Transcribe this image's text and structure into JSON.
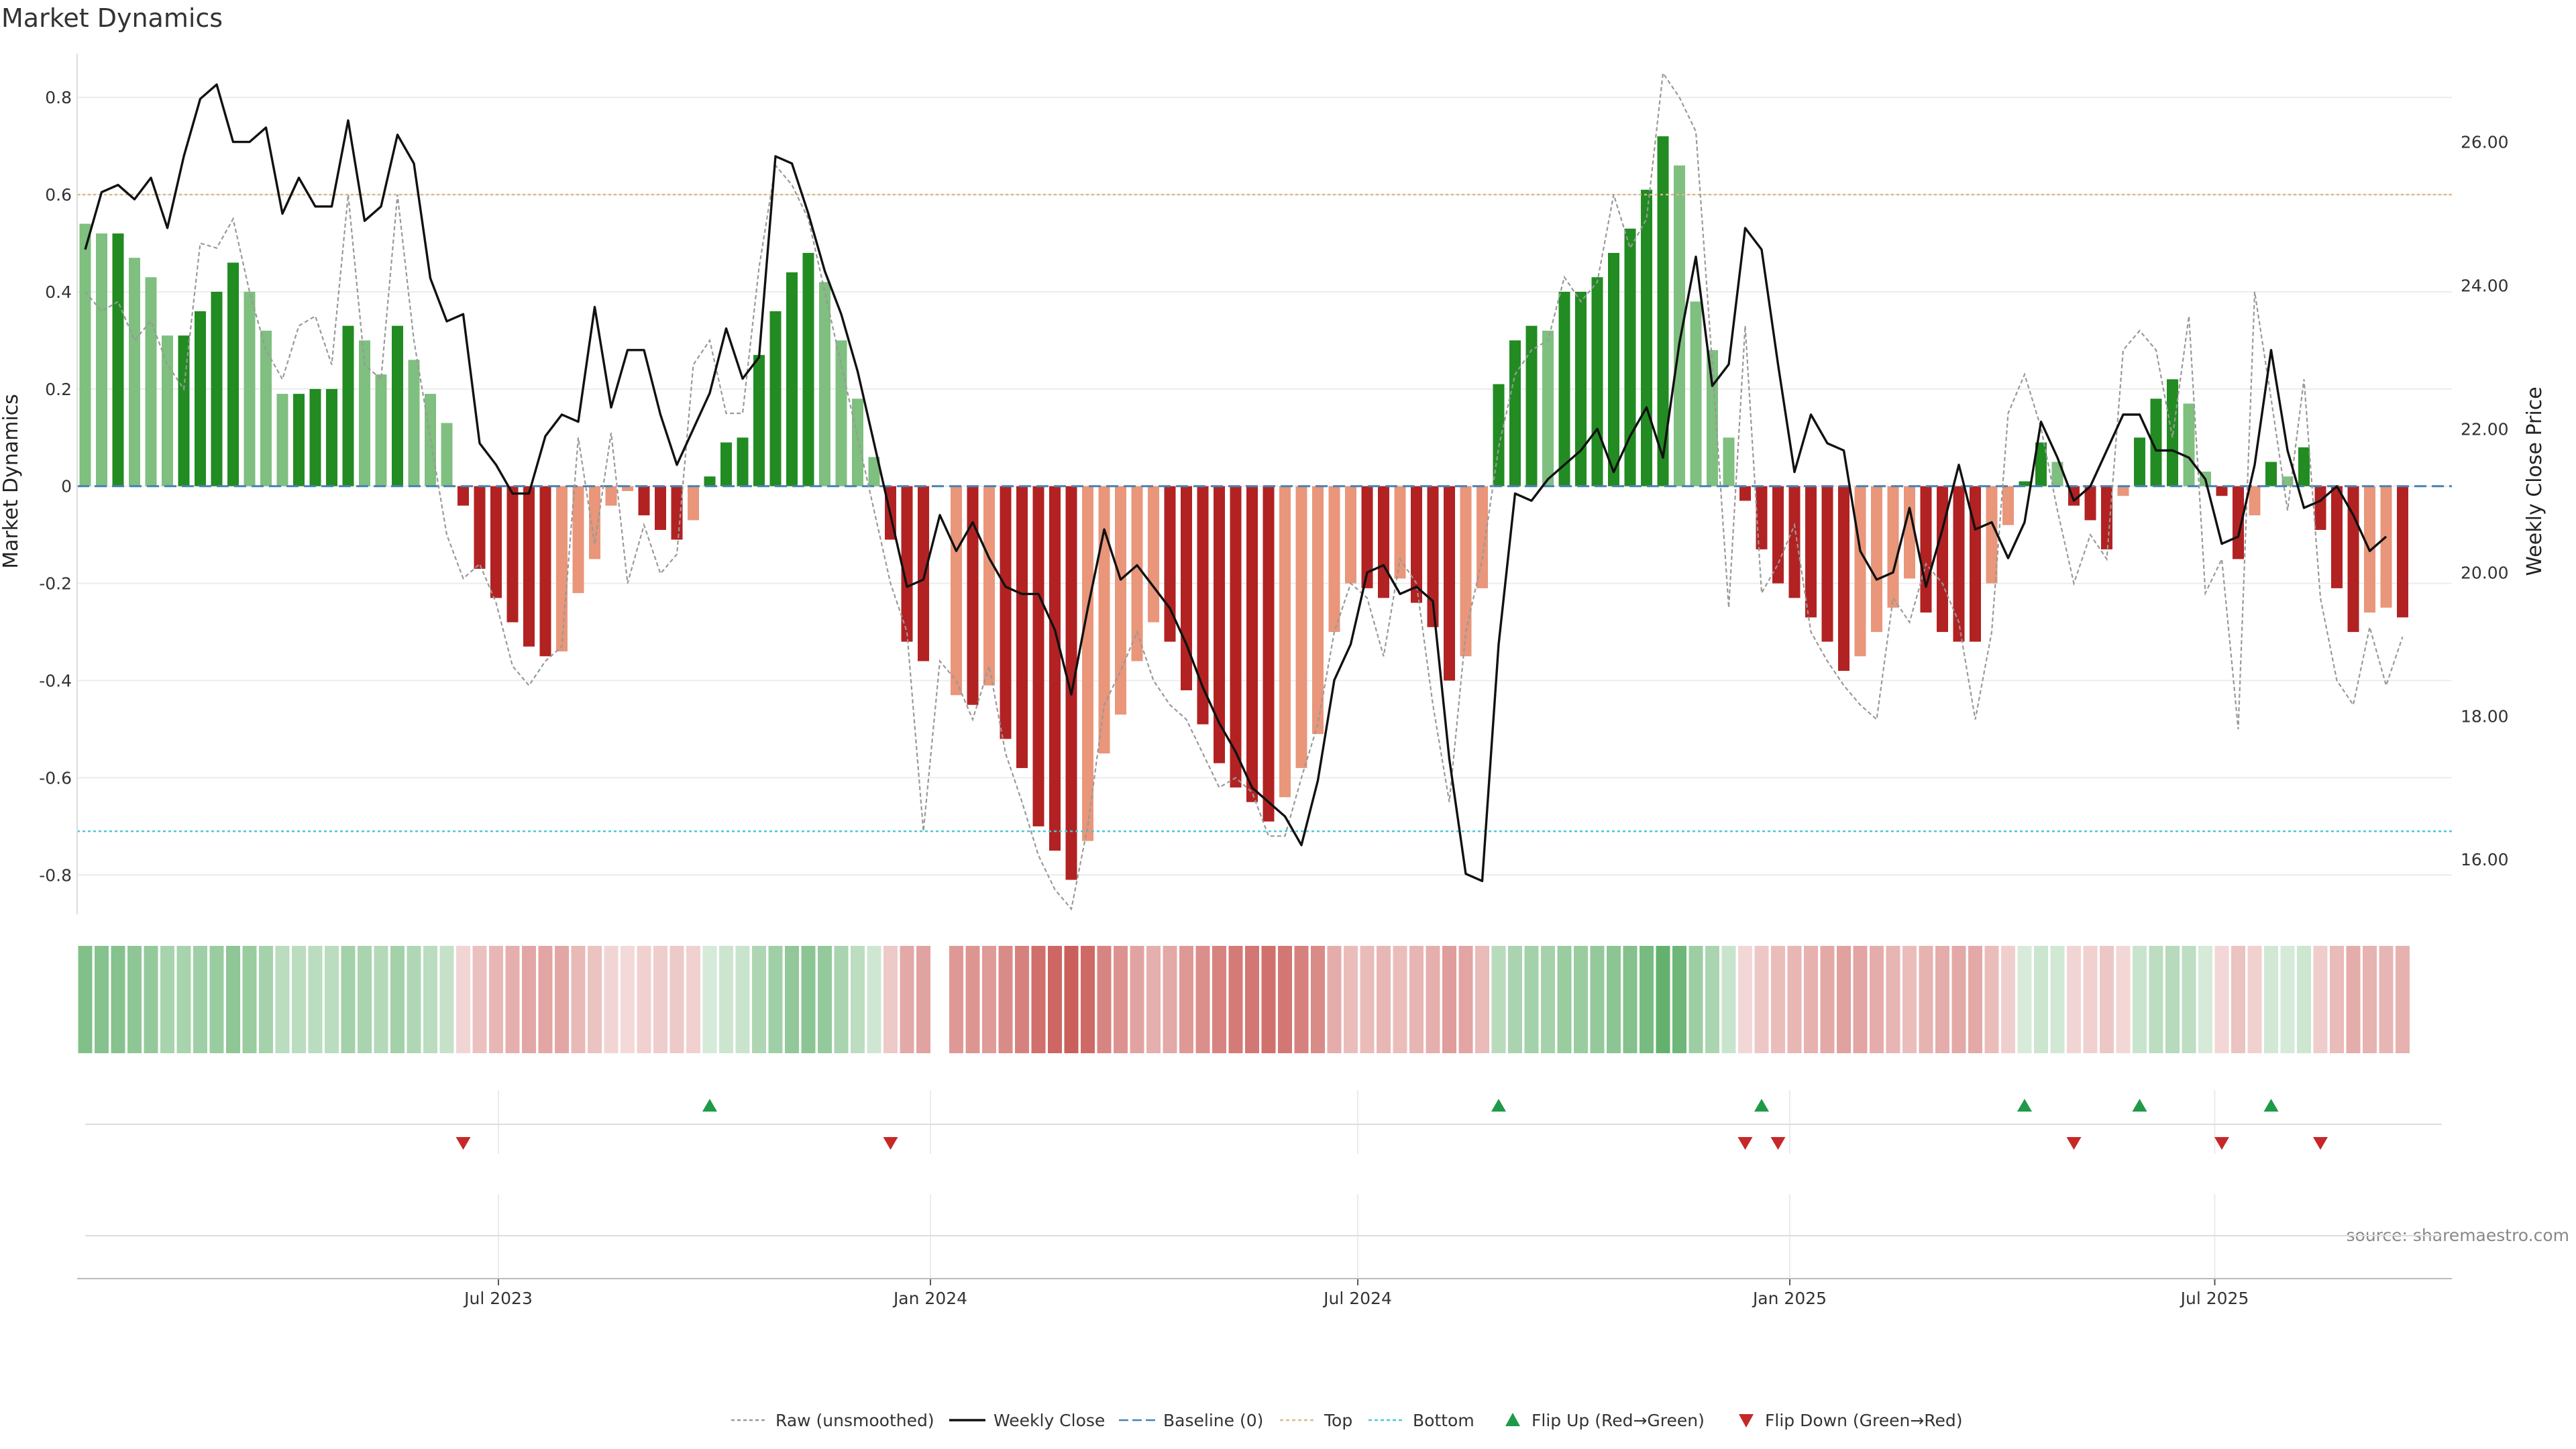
{
  "title": "Market Dynamics",
  "source": "source: sharemaestro.com",
  "colors": {
    "strong_green": "#228B22",
    "light_green": "#7FBF7F",
    "strong_red": "#B22222",
    "light_red": "#E9967A",
    "raw": "#999999",
    "close": "#111111",
    "baseline": "#4682B4",
    "top": "#DEB887",
    "bottom": "#48C9D9",
    "flip_up": "#1F9A48",
    "flip_down": "#C62828"
  },
  "chart_data": {
    "type": "bar",
    "x_start": "2023-01-06",
    "interval_days": 7,
    "x_ticks": [
      {
        "date": "2023-07-01",
        "label": "Jul 2023"
      },
      {
        "date": "2024-01-01",
        "label": "Jan 2024"
      },
      {
        "date": "2024-07-01",
        "label": "Jul 2024"
      },
      {
        "date": "2025-01-01",
        "label": "Jan 2025"
      },
      {
        "date": "2025-07-01",
        "label": "Jul 2025"
      }
    ],
    "ylabel": "Market Dynamics",
    "ylim": [
      -0.87,
      0.89
    ],
    "yticks": [
      -0.8,
      -0.6,
      -0.4,
      -0.2,
      0,
      0.2,
      0.4,
      0.6,
      0.8
    ],
    "y2label": "Weekly Close Price",
    "y2lim": [
      15.31,
      27.23
    ],
    "y2ticks": [
      "16.00",
      "18.00",
      "20.00",
      "22.00",
      "24.00",
      "26.00"
    ],
    "top_level": 0.6,
    "bottom_level": -0.71,
    "series": [
      {
        "name": "Market Dynamics (bars)",
        "values": [
          0.54,
          0.52,
          0.52,
          0.47,
          0.43,
          0.31,
          0.31,
          0.36,
          0.4,
          0.46,
          0.4,
          0.32,
          0.19,
          0.19,
          0.2,
          0.2,
          0.33,
          0.3,
          0.23,
          0.33,
          0.26,
          0.19,
          0.13,
          -0.04,
          -0.17,
          -0.23,
          -0.28,
          -0.33,
          -0.35,
          -0.34,
          -0.22,
          -0.15,
          -0.04,
          -0.01,
          -0.06,
          -0.09,
          -0.11,
          -0.07,
          0.02,
          0.09,
          0.1,
          0.27,
          0.36,
          0.44,
          0.48,
          0.42,
          0.3,
          0.18,
          0.06,
          -0.11,
          -0.32,
          -0.36,
          null,
          -0.43,
          -0.45,
          -0.41,
          -0.52,
          -0.58,
          -0.7,
          -0.75,
          -0.81,
          -0.73,
          -0.55,
          -0.47,
          -0.36,
          -0.28,
          -0.32,
          -0.42,
          -0.49,
          -0.57,
          -0.62,
          -0.65,
          -0.69,
          -0.64,
          -0.58,
          -0.51,
          -0.3,
          -0.2,
          -0.21,
          -0.23,
          -0.19,
          -0.24,
          -0.29,
          -0.4,
          -0.35,
          -0.21,
          0.21,
          0.3,
          0.33,
          0.32,
          0.4,
          0.4,
          0.43,
          0.48,
          0.53,
          0.61,
          0.72,
          0.66,
          0.38,
          0.28,
          0.1,
          -0.03,
          -0.13,
          -0.2,
          -0.23,
          -0.27,
          -0.32,
          -0.38,
          -0.35,
          -0.3,
          -0.25,
          -0.19,
          -0.26,
          -0.3,
          -0.32,
          -0.32,
          -0.2,
          -0.08,
          0.01,
          0.09,
          0.05,
          -0.04,
          -0.07,
          -0.13,
          -0.02,
          0.1,
          0.18,
          0.22,
          0.17,
          0.03,
          -0.02,
          -0.15,
          -0.06,
          0.05,
          0.02,
          0.08,
          -0.09,
          -0.21,
          -0.3,
          -0.26,
          -0.25,
          -0.27
        ]
      },
      {
        "name": "Raw (unsmoothed)",
        "values": [
          0.4,
          0.36,
          0.38,
          0.3,
          0.34,
          0.25,
          0.2,
          0.5,
          0.49,
          0.55,
          0.4,
          0.28,
          0.22,
          0.33,
          0.35,
          0.25,
          0.6,
          0.25,
          0.22,
          0.6,
          0.3,
          0.1,
          -0.1,
          -0.19,
          -0.16,
          -0.24,
          -0.37,
          -0.41,
          -0.36,
          -0.33,
          0.1,
          -0.12,
          0.11,
          -0.2,
          -0.08,
          -0.18,
          -0.14,
          0.25,
          0.3,
          0.15,
          0.15,
          0.45,
          0.66,
          0.62,
          0.55,
          0.4,
          0.25,
          0.1,
          -0.05,
          -0.2,
          -0.3,
          -0.71,
          -0.36,
          -0.4,
          -0.48,
          -0.37,
          -0.55,
          -0.65,
          -0.76,
          -0.83,
          -0.87,
          -0.7,
          -0.45,
          -0.38,
          -0.3,
          -0.4,
          -0.45,
          -0.48,
          -0.55,
          -0.62,
          -0.6,
          -0.63,
          -0.72,
          -0.72,
          -0.6,
          -0.49,
          -0.3,
          -0.2,
          -0.23,
          -0.35,
          -0.15,
          -0.2,
          -0.45,
          -0.65,
          -0.3,
          -0.15,
          0.08,
          0.23,
          0.28,
          0.3,
          0.43,
          0.38,
          0.42,
          0.6,
          0.49,
          0.55,
          0.85,
          0.8,
          0.73,
          0.25,
          -0.25,
          0.33,
          -0.22,
          -0.16,
          -0.08,
          -0.3,
          -0.36,
          -0.41,
          -0.45,
          -0.48,
          -0.23,
          -0.28,
          -0.16,
          -0.2,
          -0.28,
          -0.48,
          -0.3,
          0.15,
          0.23,
          0.12,
          -0.05,
          -0.2,
          -0.1,
          -0.15,
          0.28,
          0.32,
          0.28,
          0.1,
          0.35,
          -0.22,
          -0.15,
          -0.5,
          0.4,
          0.18,
          -0.05,
          0.22,
          -0.23,
          -0.4,
          -0.45,
          -0.29,
          -0.41,
          -0.31
        ]
      },
      {
        "name": "Weekly Close",
        "axis": "y2",
        "values": [
          24.5,
          25.3,
          25.4,
          25.2,
          25.5,
          24.8,
          25.8,
          26.6,
          26.8,
          26.0,
          26.0,
          26.2,
          25.0,
          25.5,
          25.1,
          25.1,
          26.3,
          24.9,
          25.1,
          26.1,
          25.7,
          24.1,
          23.5,
          23.6,
          21.8,
          21.5,
          21.1,
          21.1,
          21.9,
          22.2,
          22.1,
          23.7,
          22.3,
          23.1,
          23.1,
          22.2,
          21.5,
          22.0,
          22.5,
          23.4,
          22.7,
          23.0,
          25.8,
          25.7,
          25.0,
          24.2,
          23.6,
          22.8,
          21.8,
          20.8,
          19.8,
          19.9,
          20.8,
          20.3,
          20.7,
          20.2,
          19.8,
          19.7,
          19.7,
          19.2,
          18.3,
          19.5,
          20.6,
          19.9,
          20.1,
          19.8,
          19.5,
          19.0,
          18.4,
          17.9,
          17.5,
          17.0,
          16.8,
          16.6,
          16.2,
          17.1,
          18.5,
          19.0,
          20.0,
          20.1,
          19.7,
          19.8,
          19.6,
          17.4,
          15.8,
          15.7,
          19.0,
          21.1,
          21.0,
          21.3,
          21.5,
          21.7,
          22.0,
          21.4,
          21.9,
          22.3,
          21.6,
          23.2,
          24.4,
          22.6,
          22.9,
          24.8,
          24.5,
          22.9,
          21.4,
          22.2,
          21.8,
          21.7,
          20.3,
          19.9,
          20.0,
          20.9,
          19.8,
          20.6,
          21.5,
          20.6,
          20.7,
          20.2,
          20.7,
          22.1,
          21.6,
          21.0,
          21.2,
          21.7,
          22.2,
          22.2,
          21.7,
          21.7,
          21.6,
          21.3,
          20.4,
          20.5,
          21.5,
          23.1,
          21.7,
          20.9,
          21.0,
          21.2,
          20.8,
          20.3,
          20.5
        ]
      }
    ],
    "sentiment_strip": [
      0.54,
      0.52,
      0.52,
      0.47,
      0.43,
      0.31,
      0.31,
      0.36,
      0.4,
      0.46,
      0.4,
      0.32,
      0.19,
      0.19,
      0.2,
      0.2,
      0.33,
      0.3,
      0.23,
      0.33,
      0.26,
      0.19,
      0.13,
      -0.04,
      -0.17,
      -0.23,
      -0.28,
      -0.33,
      -0.35,
      -0.34,
      -0.22,
      -0.15,
      -0.04,
      -0.01,
      -0.06,
      -0.09,
      -0.11,
      -0.07,
      0.02,
      0.09,
      0.1,
      0.27,
      0.36,
      0.44,
      0.48,
      0.42,
      0.3,
      0.18,
      0.06,
      -0.11,
      -0.32,
      -0.36,
      null,
      -0.43,
      -0.45,
      -0.41,
      -0.52,
      -0.58,
      -0.7,
      -0.75,
      -0.81,
      -0.73,
      -0.55,
      -0.47,
      -0.36,
      -0.28,
      -0.32,
      -0.42,
      -0.49,
      -0.57,
      -0.62,
      -0.65,
      -0.69,
      -0.64,
      -0.58,
      -0.51,
      -0.3,
      -0.2,
      -0.21,
      -0.23,
      -0.19,
      -0.24,
      -0.29,
      -0.4,
      -0.35,
      -0.21,
      0.21,
      0.3,
      0.33,
      0.32,
      0.4,
      0.4,
      0.43,
      0.48,
      0.53,
      0.61,
      0.72,
      0.66,
      0.38,
      0.28,
      0.1,
      -0.03,
      -0.13,
      -0.2,
      -0.23,
      -0.27,
      -0.32,
      -0.38,
      -0.35,
      -0.3,
      -0.25,
      -0.19,
      -0.26,
      -0.3,
      -0.32,
      -0.32,
      -0.2,
      -0.08,
      0.01,
      0.09,
      0.05,
      -0.04,
      -0.07,
      -0.13,
      -0.02,
      0.1,
      0.18,
      0.22,
      0.17,
      0.03,
      -0.02,
      -0.15,
      -0.06,
      0.05,
      0.02,
      0.08,
      -0.09,
      -0.21,
      -0.3,
      -0.26,
      -0.25,
      -0.27
    ],
    "flip_up_indices": [
      38,
      86,
      102,
      118,
      125,
      133
    ],
    "flip_down_indices": [
      23,
      49,
      101,
      103,
      121,
      130,
      136
    ]
  },
  "legend": [
    {
      "label": "Raw (unsmoothed)",
      "kind": "dotted",
      "color": "#999999"
    },
    {
      "label": "Weekly Close",
      "kind": "solid",
      "color": "#111111"
    },
    {
      "label": "Baseline (0)",
      "kind": "dashed",
      "color": "#4682B4"
    },
    {
      "label": "Top",
      "kind": "dotted",
      "color": "#DEB887"
    },
    {
      "label": "Bottom",
      "kind": "dotted",
      "color": "#48C9D9"
    },
    {
      "label": "Flip Up (Red→Green)",
      "kind": "triangle-up",
      "color": "#1F9A48"
    },
    {
      "label": "Flip Down (Green→Red)",
      "kind": "triangle-down",
      "color": "#C62828"
    }
  ]
}
